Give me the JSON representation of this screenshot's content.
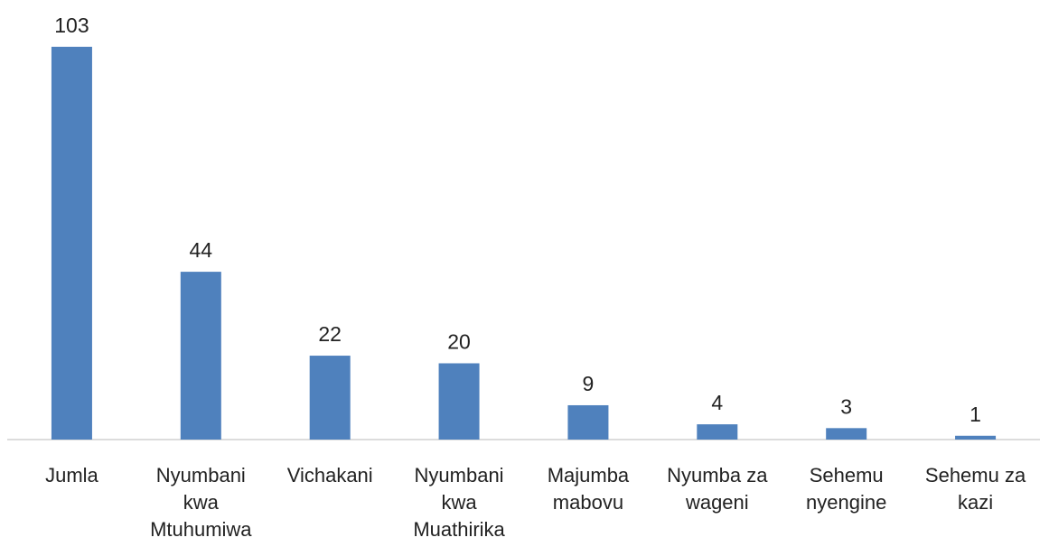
{
  "chart_data": {
    "type": "bar",
    "categories": [
      "Jumla",
      "Nyumbani kwa Mtuhumiwa",
      "Vichakani",
      "Nyumbani kwa Muathirika",
      "Majumba mabovu",
      "Nyumba za wageni",
      "Sehemu nyengine",
      "Sehemu za kazi"
    ],
    "values": [
      103,
      44,
      22,
      20,
      9,
      4,
      3,
      1
    ],
    "color": "#4f81bd"
  }
}
